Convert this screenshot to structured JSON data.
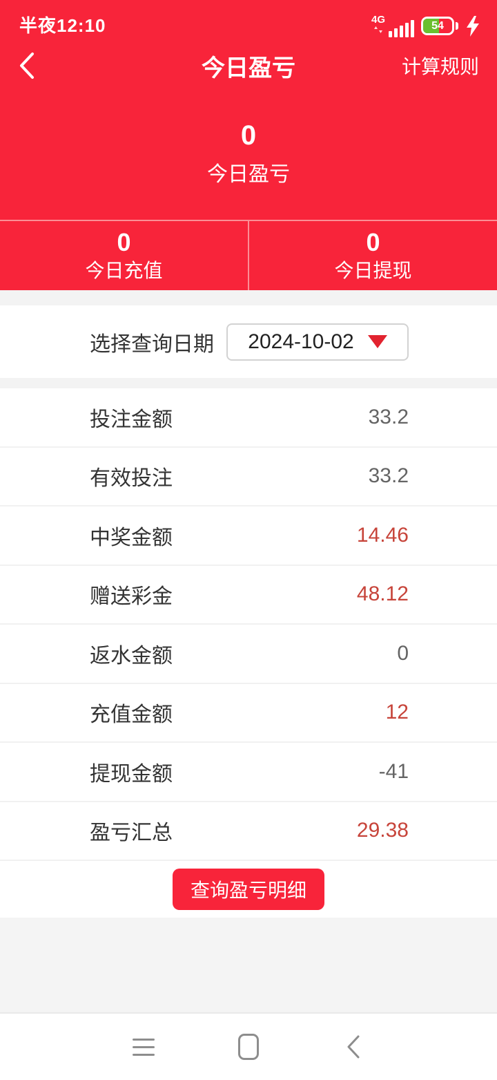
{
  "colors": {
    "app_red": "#f8243a",
    "value_red": "#c7443a",
    "value_gray": "#646464",
    "label_dark": "#333333",
    "battery_green": "#6abf2f"
  },
  "status_bar": {
    "time": "半夜12:10",
    "network": "4G",
    "battery_level": "54"
  },
  "header": {
    "title": "今日盈亏",
    "rules_link": "计算规则"
  },
  "hero": {
    "value": "0",
    "label": "今日盈亏"
  },
  "sub_stats": [
    {
      "value": "0",
      "label": "今日充值"
    },
    {
      "value": "0",
      "label": "今日提现"
    }
  ],
  "date_picker": {
    "label": "选择查询日期",
    "value": "2024-10-02"
  },
  "rows": [
    {
      "label": "投注金额",
      "value": "33.2",
      "highlight": false
    },
    {
      "label": "有效投注",
      "value": "33.2",
      "highlight": false
    },
    {
      "label": "中奖金额",
      "value": "14.46",
      "highlight": true
    },
    {
      "label": "赠送彩金",
      "value": "48.12",
      "highlight": true
    },
    {
      "label": "返水金额",
      "value": "0",
      "highlight": false
    },
    {
      "label": "充值金额",
      "value": "12",
      "highlight": true
    },
    {
      "label": "提现金额",
      "value": "-41",
      "highlight": false
    },
    {
      "label": "盈亏汇总",
      "value": "29.38",
      "highlight": true
    }
  ],
  "actions": {
    "query_detail": "查询盈亏明细"
  }
}
